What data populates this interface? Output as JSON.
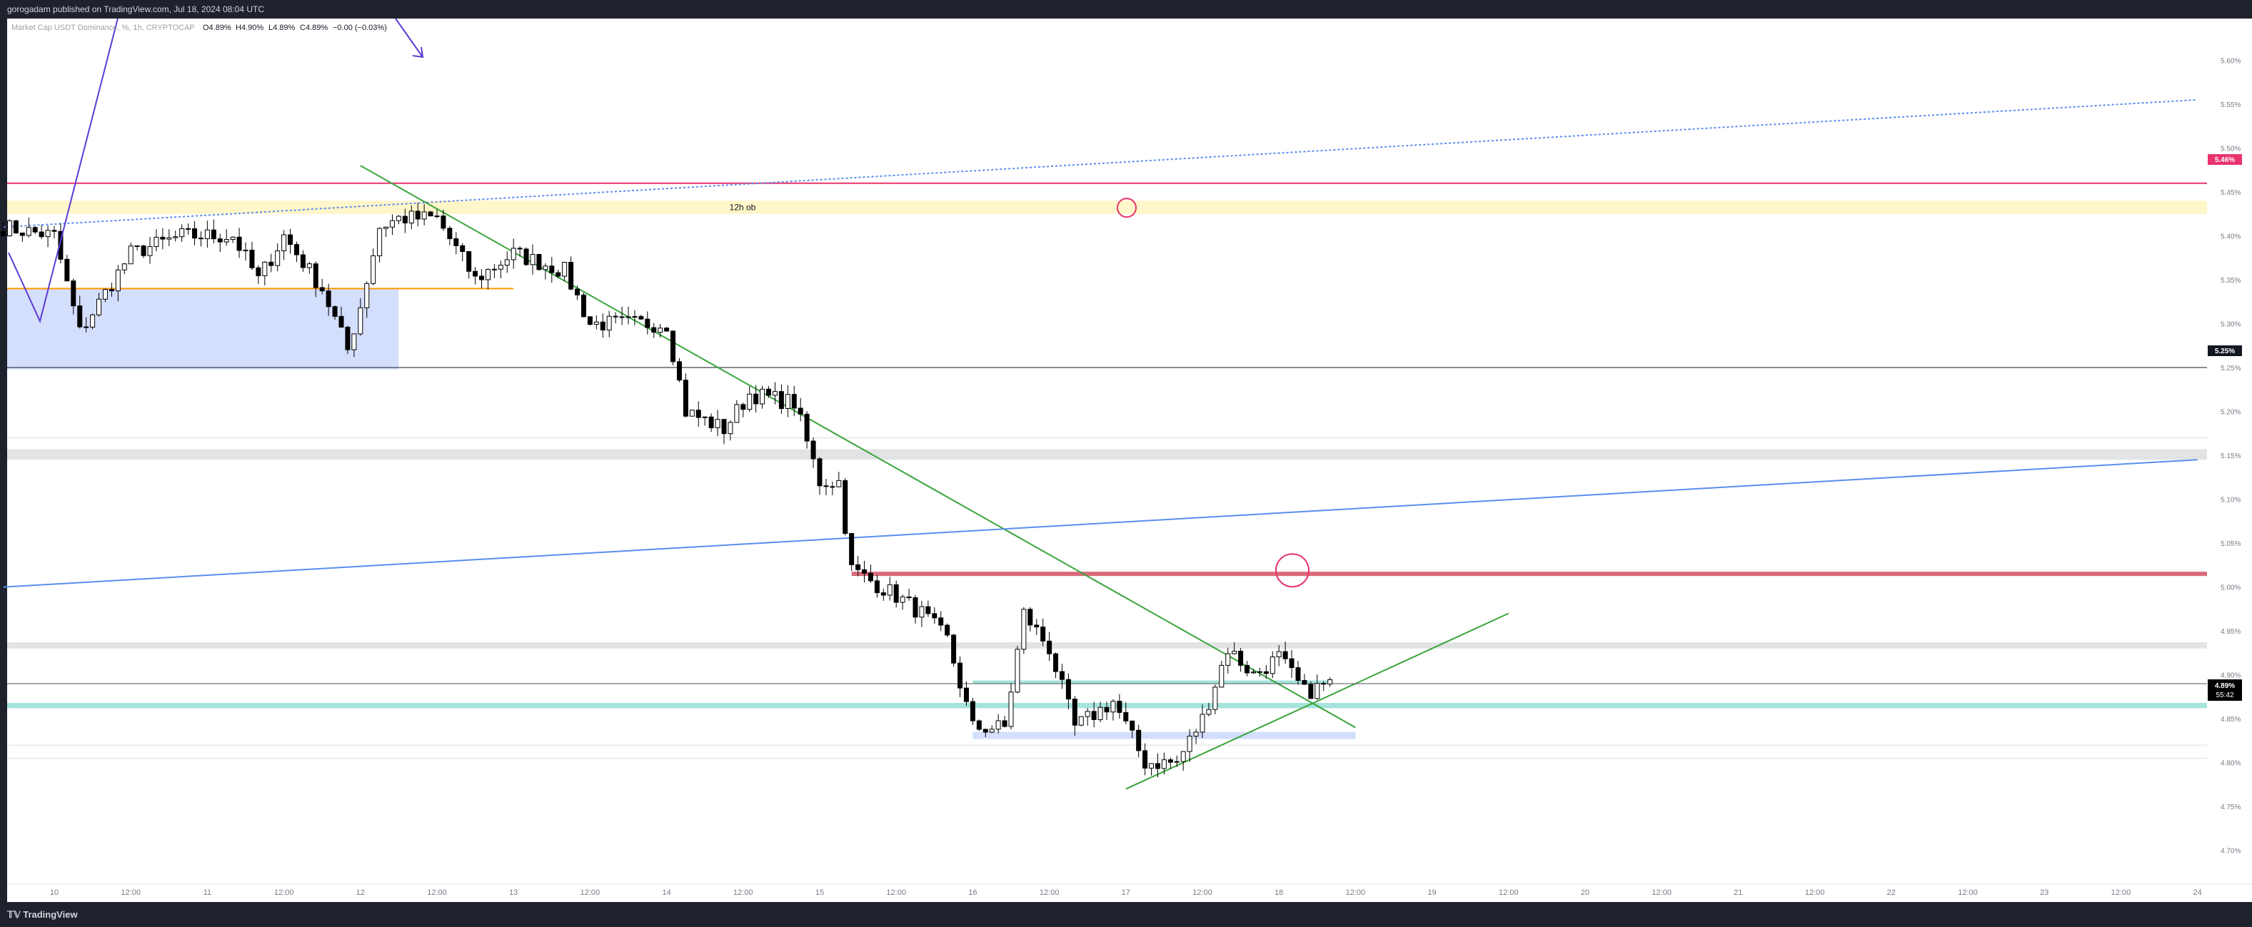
{
  "header": {
    "published": "gorogadam published on TradingView.com, Jul 18, 2024 08:04 UTC"
  },
  "legend": {
    "symbol": "Market Cap USDT Dominance, %, 1h, CRYPTOCAP",
    "open": "O4.89%",
    "high": "H4.90%",
    "low": "L4.89%",
    "close": "C4.89%",
    "change": "−0.00 (−0.03%)"
  },
  "footer": {
    "brand": "TradingView"
  },
  "colors": {
    "up": "#ffffff",
    "down": "#000000",
    "downtrend": "#3aa53a",
    "blue_line": "#5b8def",
    "red_level": "#e8336d",
    "orange_level": "#ff9800",
    "ob_zone": "#fff6c9",
    "blue_zone": "#d4defd",
    "cyan_zone": "#a6e3dd",
    "red_zone": "#d96b7b"
  },
  "chart_data": {
    "type": "candlestick",
    "timeframe": "1h",
    "x_ticks": [
      "10",
      "12:00",
      "11",
      "12:00",
      "12",
      "12:00",
      "13",
      "12:00",
      "14",
      "12:00",
      "15",
      "12:00",
      "16",
      "12:00",
      "17",
      "12:00",
      "18",
      "12:00",
      "19",
      "12:00",
      "20",
      "12:00",
      "21",
      "12:00",
      "22",
      "12:00",
      "23",
      "12:00",
      "24"
    ],
    "y_ticks": [
      "5.60%",
      "5.55%",
      "5.50%",
      "5.45%",
      "5.40%",
      "5.35%",
      "5.30%",
      "5.25%",
      "5.20%",
      "5.15%",
      "5.10%",
      "5.05%",
      "5.00%",
      "4.95%",
      "4.90%",
      "4.85%",
      "4.80%",
      "4.75%",
      "4.70%"
    ],
    "ylim": [
      4.69,
      5.615
    ],
    "price_labels": {
      "level_545": "5.46%",
      "level_525": "5.25%",
      "current": "4.89%",
      "countdown": "55:42"
    },
    "annotations": {
      "order_block": "12h ob"
    },
    "close_anchors": [
      {
        "t": "Jul 09 16:00",
        "c": 5.41
      },
      {
        "t": "Jul 10 00:00",
        "c": 5.4
      },
      {
        "t": "Jul 10 04:00",
        "c": 5.29
      },
      {
        "t": "Jul 10 12:00",
        "c": 5.38
      },
      {
        "t": "Jul 10 20:00",
        "c": 5.4
      },
      {
        "t": "Jul 11 04:00",
        "c": 5.4
      },
      {
        "t": "Jul 11 08:00",
        "c": 5.35
      },
      {
        "t": "Jul 11 12:00",
        "c": 5.4
      },
      {
        "t": "Jul 11 18:00",
        "c": 5.34
      },
      {
        "t": "Jul 11 22:00",
        "c": 5.27
      },
      {
        "t": "Jul 12 00:00",
        "c": 5.32
      },
      {
        "t": "Jul 12 03:00",
        "c": 5.41
      },
      {
        "t": "Jul 12 06:00",
        "c": 5.42
      },
      {
        "t": "Jul 12 12:00",
        "c": 5.42
      },
      {
        "t": "Jul 12 18:00",
        "c": 5.35
      },
      {
        "t": "Jul 13 00:00",
        "c": 5.38
      },
      {
        "t": "Jul 13 08:00",
        "c": 5.36
      },
      {
        "t": "Jul 13 12:00",
        "c": 5.3
      },
      {
        "t": "Jul 14 00:00",
        "c": 5.3
      },
      {
        "t": "Jul 14 03:00",
        "c": 5.2
      },
      {
        "t": "Jul 14 09:00",
        "c": 5.18
      },
      {
        "t": "Jul 14 13:00",
        "c": 5.22
      },
      {
        "t": "Jul 14 20:00",
        "c": 5.21
      },
      {
        "t": "Jul 15 00:00",
        "c": 5.12
      },
      {
        "t": "Jul 15 03:00",
        "c": 5.12
      },
      {
        "t": "Jul 15 05:00",
        "c": 5.02
      },
      {
        "t": "Jul 15 12:00",
        "c": 4.99
      },
      {
        "t": "Jul 15 16:00",
        "c": 4.97
      },
      {
        "t": "Jul 15 20:00",
        "c": 4.94
      },
      {
        "t": "Jul 16 00:00",
        "c": 4.84
      },
      {
        "t": "Jul 16 05:00",
        "c": 4.84
      },
      {
        "t": "Jul 16 08:00",
        "c": 4.97
      },
      {
        "t": "Jul 16 12:00",
        "c": 4.93
      },
      {
        "t": "Jul 16 16:00",
        "c": 4.84
      },
      {
        "t": "Jul 16 22:00",
        "c": 4.87
      },
      {
        "t": "Jul 17 03:00",
        "c": 4.8
      },
      {
        "t": "Jul 17 08:00",
        "c": 4.8
      },
      {
        "t": "Jul 17 12:00",
        "c": 4.85
      },
      {
        "t": "Jul 17 16:00",
        "c": 4.93
      },
      {
        "t": "Jul 17 20:00",
        "c": 4.9
      },
      {
        "t": "Jul 18 00:00",
        "c": 4.92
      },
      {
        "t": "Jul 18 04:00",
        "c": 4.88
      },
      {
        "t": "Jul 18 08:00",
        "c": 4.89
      }
    ],
    "drawings": [
      {
        "kind": "hline",
        "price": 5.46,
        "color": "red_level"
      },
      {
        "kind": "hline",
        "price": 5.25,
        "color": "black"
      },
      {
        "kind": "hline",
        "price": 5.015,
        "color": "red_zone"
      },
      {
        "kind": "hline",
        "price": 5.34,
        "color": "orange_level"
      },
      {
        "kind": "zone",
        "from": 5.425,
        "to": 5.44,
        "label": "12h ob"
      },
      {
        "kind": "zone",
        "from": 5.248,
        "to": 5.34,
        "color": "blue_zone"
      },
      {
        "kind": "zone",
        "from": 4.862,
        "to": 4.868,
        "color": "cyan_zone"
      },
      {
        "kind": "trendline",
        "from": {
          "t": "Jul 12 00:00",
          "p": 5.48
        },
        "to": {
          "t": "Jul 18 12:00",
          "p": 4.84
        },
        "color": "downtrend"
      },
      {
        "kind": "trendline",
        "from": {
          "t": "Jul 17 00:00",
          "p": 4.77
        },
        "to": {
          "t": "Jul 19 12:00",
          "p": 4.97
        },
        "color": "downtrend"
      },
      {
        "kind": "trendline",
        "from": {
          "t": "Jul 09 16:00",
          "p": 5.0
        },
        "to": {
          "t": "Jul 24 00:00",
          "p": 5.145
        },
        "color": "blue_line"
      },
      {
        "kind": "trendline",
        "dotted": true,
        "from": {
          "t": "Jul 09 16:00",
          "p": 5.41
        },
        "to": {
          "t": "Jul 24 00:00",
          "p": 5.555
        },
        "color": "blue_line"
      }
    ]
  }
}
